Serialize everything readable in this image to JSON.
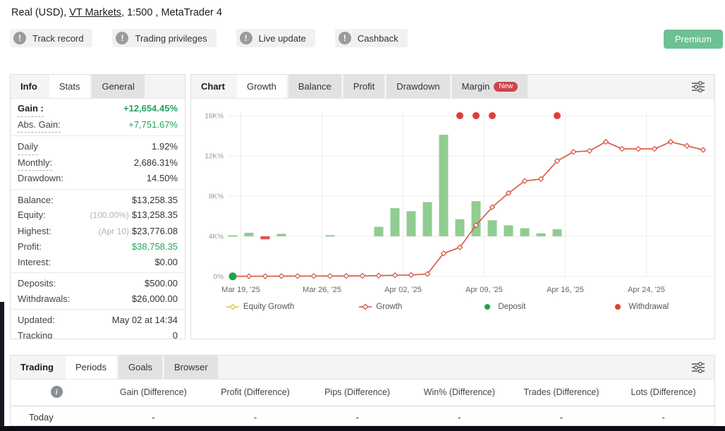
{
  "header": {
    "prefix": "Real (USD), ",
    "broker": "VT Markets",
    "suffix": ", 1:500 , MetaTrader 4"
  },
  "badges": [
    "Track record",
    "Trading privileges",
    "Live update",
    "Cashback"
  ],
  "premium_label": "Premium",
  "colors": {
    "accent_green": "#24a35f",
    "premium_green": "#6cc193",
    "new_badge_red": "#cf4349"
  },
  "info_panel": {
    "tabs": [
      {
        "label": "Info",
        "state": "title"
      },
      {
        "label": "Stats",
        "state": "active"
      },
      {
        "label": "General",
        "state": "default"
      }
    ],
    "rows": [
      {
        "label": "Gain :",
        "value": "+12,654.45%",
        "value_style": "green-bold",
        "u": true,
        "b": true
      },
      {
        "label": "Abs. Gain:",
        "value": "+7,751.67%",
        "value_style": "green",
        "u": true,
        "divider_after": true
      },
      {
        "label": "Daily",
        "value": "1.92%",
        "u": true
      },
      {
        "label": "Monthly:",
        "value": "2,686.31%",
        "u": true
      },
      {
        "label": "Drawdown:",
        "value": "14.50%",
        "divider_after": true
      },
      {
        "label": "Balance:",
        "value": "$13,258.35"
      },
      {
        "label": "Equity:",
        "prefix": "(100.00%)",
        "value": "$13,258.35"
      },
      {
        "label": "Highest:",
        "prefix": "(Apr 10)",
        "value": "$23,776.08"
      },
      {
        "label": "Profit:",
        "value": "$38,758.35",
        "value_style": "green"
      },
      {
        "label": "Interest:",
        "value": "$0.00",
        "divider_after": true
      },
      {
        "label": "Deposits:",
        "value": "$500.00"
      },
      {
        "label": "Withdrawals:",
        "value": "$26,000.00",
        "divider_after": true
      },
      {
        "label": "Updated:",
        "value": "May 02 at 14:34"
      },
      {
        "label": "Tracking",
        "value": "0"
      }
    ]
  },
  "chart_panel": {
    "tabs": [
      {
        "label": "Chart",
        "state": "title"
      },
      {
        "label": "Growth",
        "state": "active"
      },
      {
        "label": "Balance",
        "state": "default"
      },
      {
        "label": "Profit",
        "state": "default"
      },
      {
        "label": "Drawdown",
        "state": "default"
      },
      {
        "label": "Margin",
        "state": "default",
        "badge": "New"
      }
    ],
    "legend": [
      {
        "label": "Equity Growth",
        "marker": "line-diamond",
        "color": "#ddc44a"
      },
      {
        "label": "Growth",
        "marker": "line-diamond",
        "color": "#d9543f"
      },
      {
        "label": "Deposit",
        "marker": "dot",
        "color": "#21a04c"
      },
      {
        "label": "Withdrawal",
        "marker": "dot",
        "color": "#e23d34"
      }
    ]
  },
  "chart_data": {
    "type": "line+bar",
    "title": "Growth",
    "ylim": [
      0,
      16
    ],
    "grid": true,
    "yticks": [
      {
        "v": 0,
        "label": "0%"
      },
      {
        "v": 4,
        "label": "4K%"
      },
      {
        "v": 8,
        "label": "8K%"
      },
      {
        "v": 12,
        "label": "12K%"
      },
      {
        "v": 16,
        "label": "16K%"
      }
    ],
    "x_count": 30,
    "xticks": [
      {
        "pos": 0.5,
        "label": "Mar 19, '25"
      },
      {
        "pos": 5.5,
        "label": "Mar 26, '25"
      },
      {
        "pos": 10.5,
        "label": "Apr 02, '25"
      },
      {
        "pos": 15.5,
        "label": "Apr 09, '25"
      },
      {
        "pos": 20.5,
        "label": "Apr 16, '25"
      },
      {
        "pos": 25.5,
        "label": "Apr 24, '25"
      }
    ],
    "growth_line": {
      "name": "Growth",
      "color": "#d9543f",
      "unit": "K%",
      "values": [
        0.02,
        0.03,
        0.03,
        0.04,
        0.04,
        0.05,
        0.05,
        0.06,
        0.07,
        0.09,
        0.12,
        0.15,
        0.25,
        2.3,
        2.9,
        5.1,
        6.9,
        8.3,
        9.5,
        9.7,
        11.5,
        12.4,
        12.5,
        13.4,
        12.7,
        12.7,
        12.7,
        13.4,
        13.0,
        12.6
      ]
    },
    "equity_bars": {
      "name": "Equity Growth",
      "baseline": 4,
      "unit": "K%",
      "pos_color": "#90cd90",
      "neg_color": "#e05252",
      "points": [
        {
          "i": 0,
          "v": 0.1
        },
        {
          "i": 1,
          "v": 0.35
        },
        {
          "i": 2,
          "v": -0.3
        },
        {
          "i": 3,
          "v": 0.25
        },
        {
          "i": 6,
          "v": 0.12
        },
        {
          "i": 9,
          "v": 0.95
        },
        {
          "i": 10,
          "v": 2.8
        },
        {
          "i": 11,
          "v": 2.5
        },
        {
          "i": 12,
          "v": 3.4
        },
        {
          "i": 13,
          "v": 10.1
        },
        {
          "i": 14,
          "v": 1.7
        },
        {
          "i": 15,
          "v": 3.5
        },
        {
          "i": 16,
          "v": 1.6
        },
        {
          "i": 17,
          "v": 1.1
        },
        {
          "i": 18,
          "v": 0.8
        },
        {
          "i": 19,
          "v": 0.3
        },
        {
          "i": 20,
          "v": 0.7
        }
      ]
    },
    "deposits": {
      "name": "Deposit",
      "color": "#21a04c",
      "points": [
        {
          "i": 0,
          "v": 0.02
        }
      ]
    },
    "withdrawals": {
      "name": "Withdrawal",
      "color": "#e23d34",
      "points": [
        {
          "i": 14,
          "v": 16
        },
        {
          "i": 15,
          "v": 16
        },
        {
          "i": 16,
          "v": 16
        },
        {
          "i": 20,
          "v": 16
        }
      ]
    }
  },
  "bottom_panel": {
    "tabs": [
      {
        "label": "Trading",
        "state": "title"
      },
      {
        "label": "Periods",
        "state": "active"
      },
      {
        "label": "Goals",
        "state": "default"
      },
      {
        "label": "Browser",
        "state": "default"
      }
    ],
    "columns": [
      "Gain (Difference)",
      "Profit (Difference)",
      "Pips (Difference)",
      "Win% (Difference)",
      "Trades (Difference)",
      "Lots (Difference)"
    ],
    "rows": [
      {
        "label": "Today",
        "values": [
          "-",
          "-",
          "-",
          "-",
          "-",
          "-"
        ]
      }
    ]
  }
}
